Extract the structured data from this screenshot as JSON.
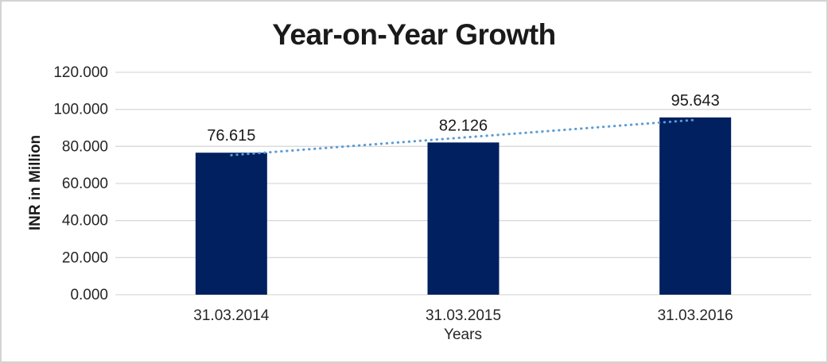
{
  "chart_data": {
    "type": "bar",
    "title": "Year-on-Year Growth",
    "categories": [
      "31.03.2014",
      "31.03.2015",
      "31.03.2016"
    ],
    "values": [
      76.615,
      82.126,
      95.643
    ],
    "data_labels": [
      "76.615",
      "82.126",
      "95.643"
    ],
    "xlabel": "Years",
    "ylabel": "INR in Million",
    "ylim": [
      0,
      120
    ],
    "ytick_step": 20,
    "ytick_labels": [
      "0.000",
      "20.000",
      "40.000",
      "60.000",
      "80.000",
      "100.000",
      "120.000"
    ],
    "grid": true,
    "legend": "none",
    "bar_color": "#002060",
    "trendline": {
      "type": "linear",
      "style": "dotted",
      "color": "#5B9BD5"
    },
    "gridline_color": "#D9D9D9",
    "axis_line_color": "#D9D9D9",
    "text_color": "#262626",
    "title_color": "#1A1A1A",
    "background": "#FFFFFF",
    "border_color": "#D3D3D3"
  }
}
